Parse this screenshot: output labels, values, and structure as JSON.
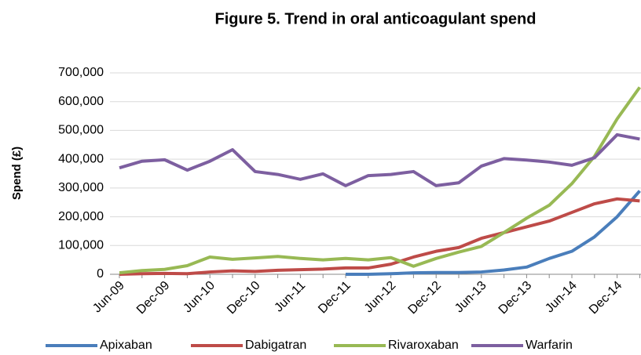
{
  "chart_data": {
    "type": "line",
    "title": "Figure 5. Trend in oral anticoagulant spend",
    "y_label": "Spend (£)",
    "categories": [
      "Jun-09",
      null,
      "Dec-09",
      null,
      "Jun-10",
      null,
      "Dec-10",
      null,
      "Jun-11",
      null,
      "Dec-11",
      null,
      "Jun-12",
      null,
      "Dec-12",
      null,
      "Jun-13",
      null,
      "Dec-13",
      null,
      "Jun-14",
      null,
      "Dec-14",
      null
    ],
    "series": [
      {
        "name": "Apixaban",
        "color": "#4a7ebb",
        "values": [
          null,
          null,
          null,
          null,
          null,
          null,
          null,
          null,
          null,
          null,
          0,
          0,
          2000,
          5000,
          6000,
          6000,
          8000,
          15000,
          25000,
          55000,
          80000,
          130000,
          200000,
          290000
        ]
      },
      {
        "name": "Dabigatran",
        "color": "#be4b48",
        "values": [
          0,
          2000,
          3000,
          2000,
          8000,
          12000,
          10000,
          14000,
          16000,
          18000,
          22000,
          22000,
          35000,
          60000,
          80000,
          93000,
          125000,
          145000,
          165000,
          185000,
          215000,
          245000,
          262000,
          255000
        ]
      },
      {
        "name": "Rivaroxaban",
        "color": "#98b954",
        "values": [
          5000,
          13000,
          17000,
          30000,
          60000,
          52000,
          57000,
          62000,
          55000,
          50000,
          55000,
          50000,
          58000,
          28000,
          55000,
          77000,
          97000,
          145000,
          195000,
          240000,
          315000,
          410000,
          540000,
          650000
        ]
      },
      {
        "name": "Warfarin",
        "color": "#7d5fa0",
        "values": [
          370000,
          393000,
          398000,
          362000,
          393000,
          433000,
          357000,
          347000,
          330000,
          349000,
          308000,
          343000,
          347000,
          357000,
          308000,
          318000,
          376000,
          402000,
          397000,
          390000,
          379000,
          405000,
          485000,
          470000
        ]
      }
    ],
    "ylim": [
      0,
      700000
    ],
    "yticks": [
      0,
      {
        "value": 100000,
        "label": "100,000"
      },
      {
        "value": 200000,
        "label": "200,000"
      },
      {
        "value": 300000,
        "label": "300,000"
      },
      {
        "value": 400000,
        "label": "400,000"
      },
      {
        "value": 500000,
        "label": "500,000"
      },
      {
        "value": 600000,
        "label": "600,000"
      },
      {
        "value": 700000,
        "label": "700,000"
      }
    ],
    "grid": true,
    "legend": "bottom"
  }
}
